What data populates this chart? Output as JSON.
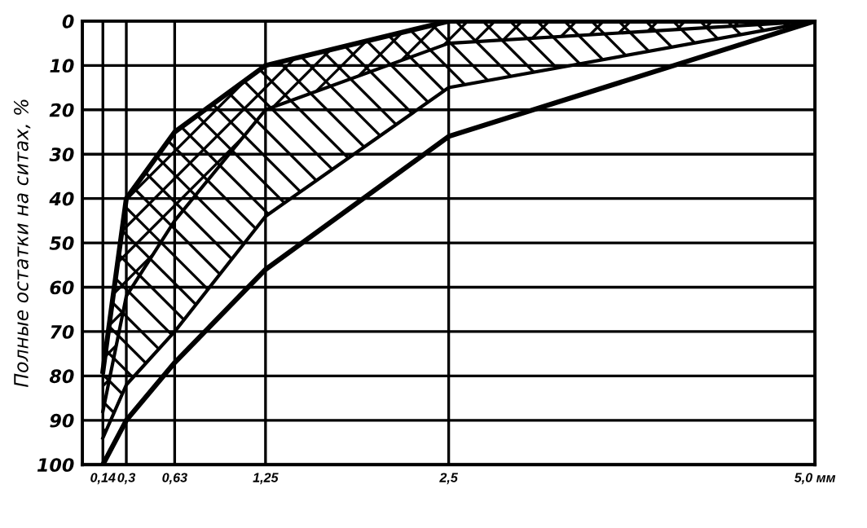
{
  "chart_data": {
    "type": "line",
    "ylabel": "Полные остатки на ситах, %",
    "x": [
      0.14,
      0.3,
      0.63,
      1.25,
      2.5,
      5.0
    ],
    "series": [
      {
        "type": "line",
        "color": "#000000",
        "values": [
          79,
          40,
          25,
          10,
          0,
          0
        ]
      },
      {
        "type": "area",
        "color": "#000000",
        "values": [
          88,
          62,
          45,
          20,
          5,
          0
        ]
      },
      {
        "type": "area",
        "color": "#000000",
        "values": [
          94,
          82,
          70,
          44,
          15,
          0
        ]
      },
      {
        "type": "line",
        "color": "#000000",
        "values": [
          100,
          90,
          77,
          56,
          26,
          0
        ]
      }
    ],
    "xlim": [
      0,
      5.0
    ],
    "xticks": [
      {
        "value": 0.14,
        "label": "0,14"
      },
      {
        "value": 0.3,
        "label": "0,3"
      },
      {
        "value": 0.63,
        "label": "0,63"
      },
      {
        "value": 1.25,
        "label": "1,25"
      },
      {
        "value": 2.5,
        "label": "2,5"
      },
      {
        "value": 5.0,
        "label": "5,0 мм"
      }
    ],
    "ylim": [
      100,
      0
    ],
    "yticks": [
      0,
      10,
      20,
      30,
      40,
      50,
      60,
      70,
      80,
      90,
      100
    ],
    "grid": true,
    "marker": "none",
    "line_style": "solid"
  }
}
